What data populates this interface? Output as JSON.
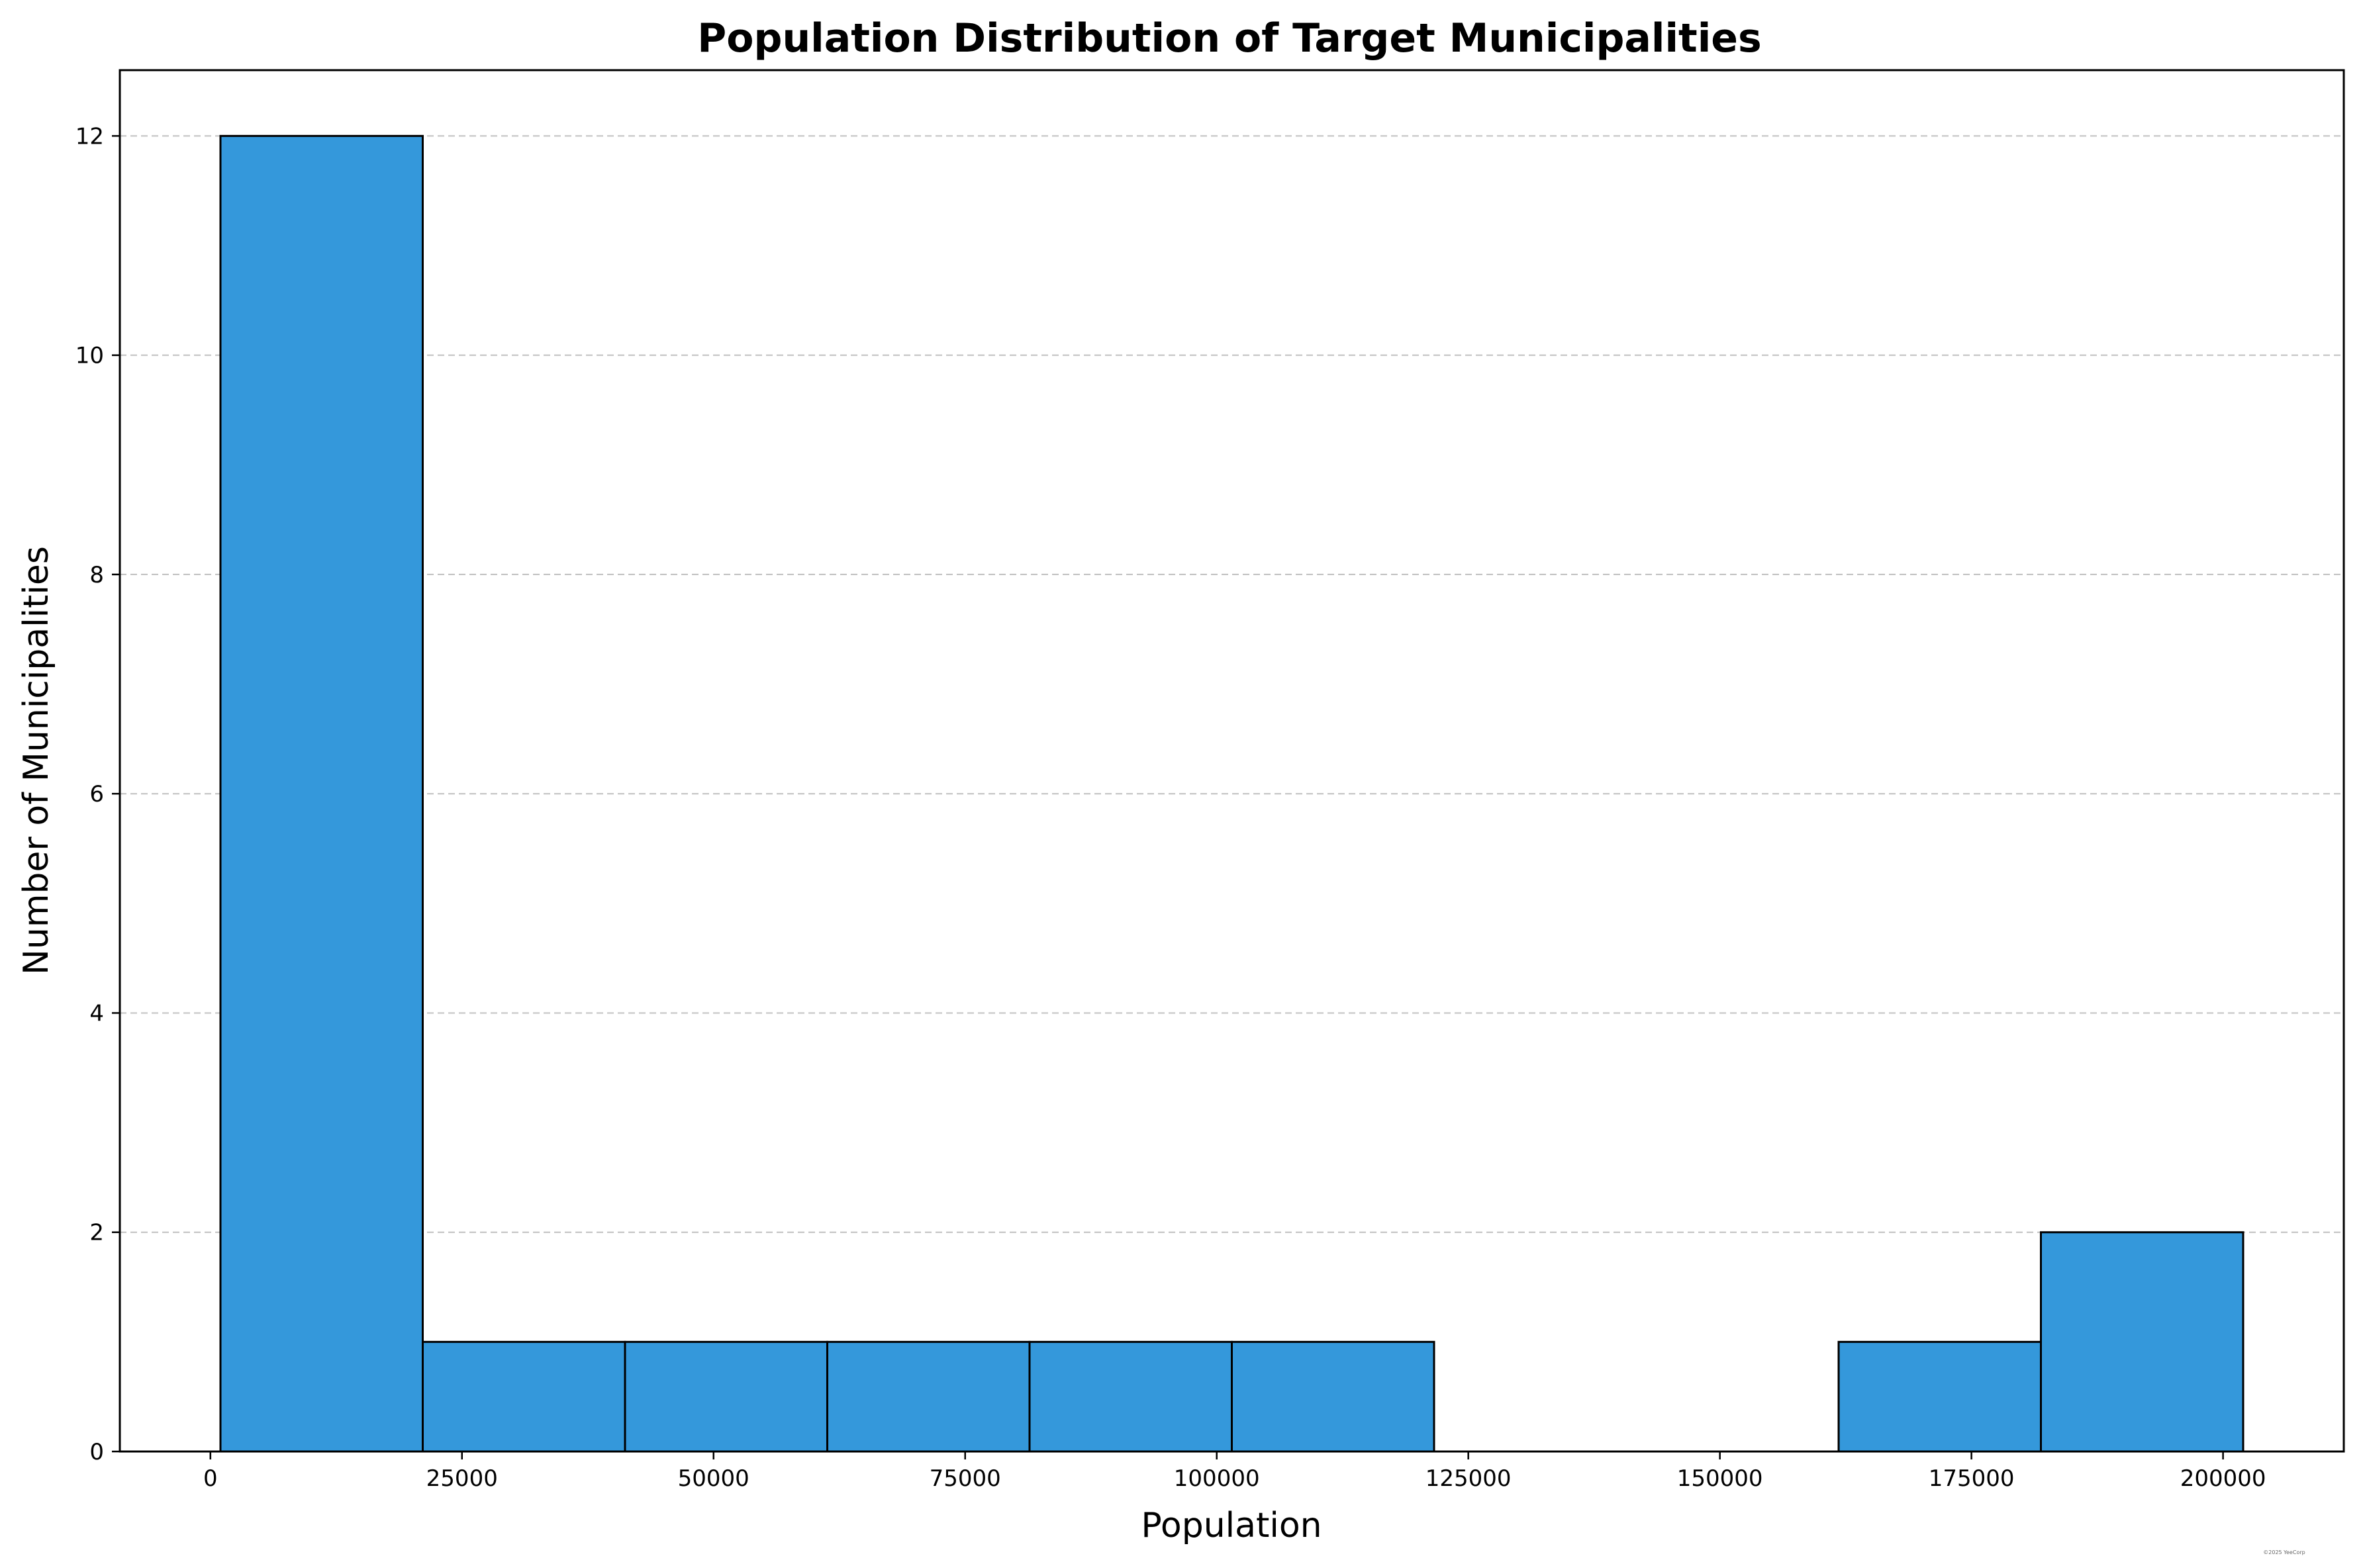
{
  "chart_data": {
    "type": "bar",
    "title": "Population Distribution of Target Municipalities",
    "xlabel": "Population",
    "ylabel": "Number of Municipalities",
    "bins": [
      {
        "start": 1000,
        "end": 21100,
        "count": 12
      },
      {
        "start": 21100,
        "end": 41200,
        "count": 1
      },
      {
        "start": 41200,
        "end": 61300,
        "count": 1
      },
      {
        "start": 61300,
        "end": 81400,
        "count": 1
      },
      {
        "start": 81400,
        "end": 101500,
        "count": 1
      },
      {
        "start": 101500,
        "end": 121600,
        "count": 1
      },
      {
        "start": 121600,
        "end": 141700,
        "count": 0
      },
      {
        "start": 141700,
        "end": 161800,
        "count": 0
      },
      {
        "start": 161800,
        "end": 181900,
        "count": 1
      },
      {
        "start": 181900,
        "end": 202000,
        "count": 2
      }
    ],
    "xlim": [
      -9000,
      212000
    ],
    "ylim": [
      0,
      12.6
    ],
    "xticks": [
      0,
      25000,
      50000,
      75000,
      100000,
      125000,
      150000,
      175000,
      200000
    ],
    "yticks": [
      0,
      2,
      4,
      6,
      8,
      10,
      12
    ],
    "grid": "y-dashed",
    "colors": {
      "bar": "#3498db",
      "edge": "#000000",
      "grid": "#c0c0c0"
    }
  },
  "watermark": "©2025 YeeCorp"
}
